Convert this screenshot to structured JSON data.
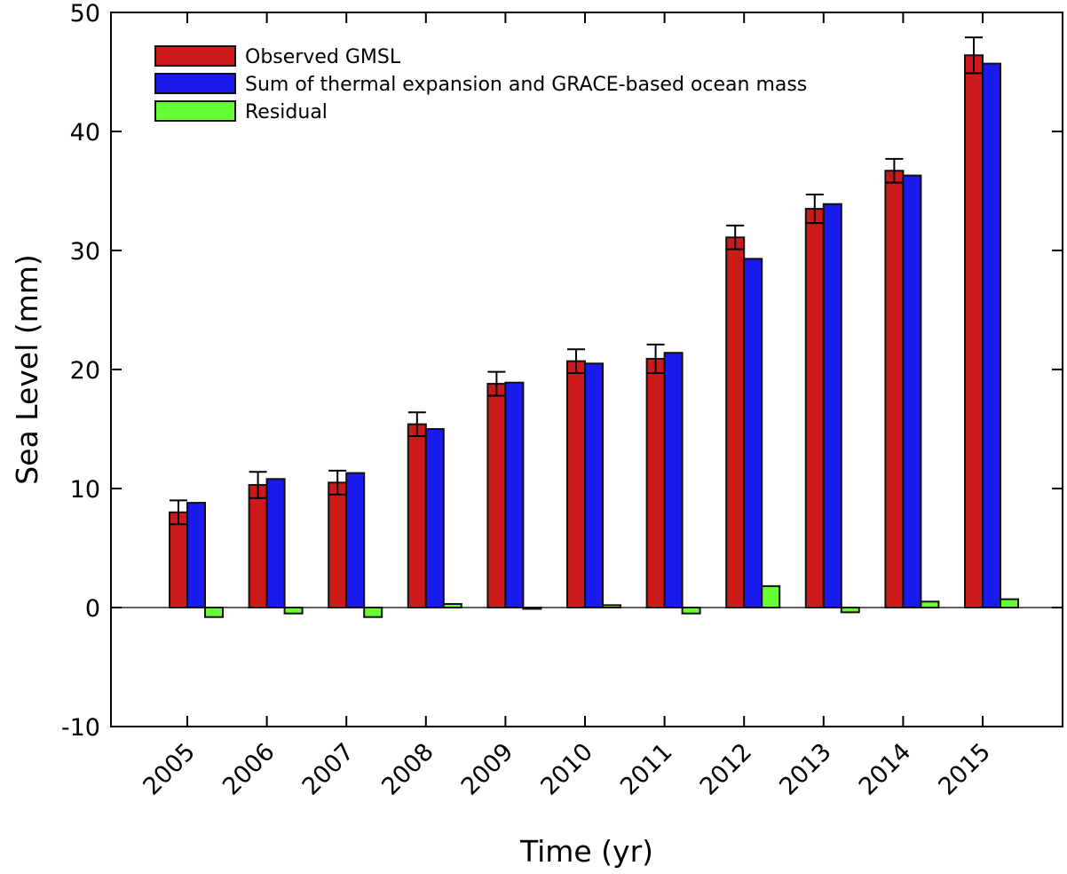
{
  "chart_data": {
    "type": "bar",
    "title": "",
    "xlabel": "Time (yr)",
    "ylabel": "Sea Level (mm)",
    "ylim": [
      -10,
      50
    ],
    "yticks": [
      "-10",
      "0",
      "10",
      "20",
      "30",
      "40",
      "50"
    ],
    "categories": [
      "2005",
      "2006",
      "2007",
      "2008",
      "2009",
      "2010",
      "2011",
      "2012",
      "2013",
      "2014",
      "2015"
    ],
    "series": [
      {
        "name": "Observed GMSL",
        "color": "#cc1a1a",
        "values": [
          8.0,
          10.3,
          10.5,
          15.4,
          18.8,
          20.7,
          20.9,
          31.1,
          33.5,
          36.7,
          46.4
        ],
        "error": [
          1.0,
          1.1,
          1.0,
          1.0,
          1.0,
          1.0,
          1.2,
          1.0,
          1.2,
          1.0,
          1.5
        ]
      },
      {
        "name": "Sum of thermal expansion and GRACE-based ocean mass",
        "color": "#1a1aee",
        "values": [
          8.8,
          10.8,
          11.3,
          15.0,
          18.9,
          20.5,
          21.4,
          29.3,
          33.9,
          36.3,
          45.7
        ]
      },
      {
        "name": "Residual",
        "color": "#66ff33",
        "values": [
          -0.8,
          -0.5,
          -0.8,
          0.3,
          -0.1,
          0.2,
          -0.5,
          1.8,
          -0.4,
          0.5,
          0.7
        ]
      }
    ],
    "grid": false,
    "legend": "top-left"
  }
}
